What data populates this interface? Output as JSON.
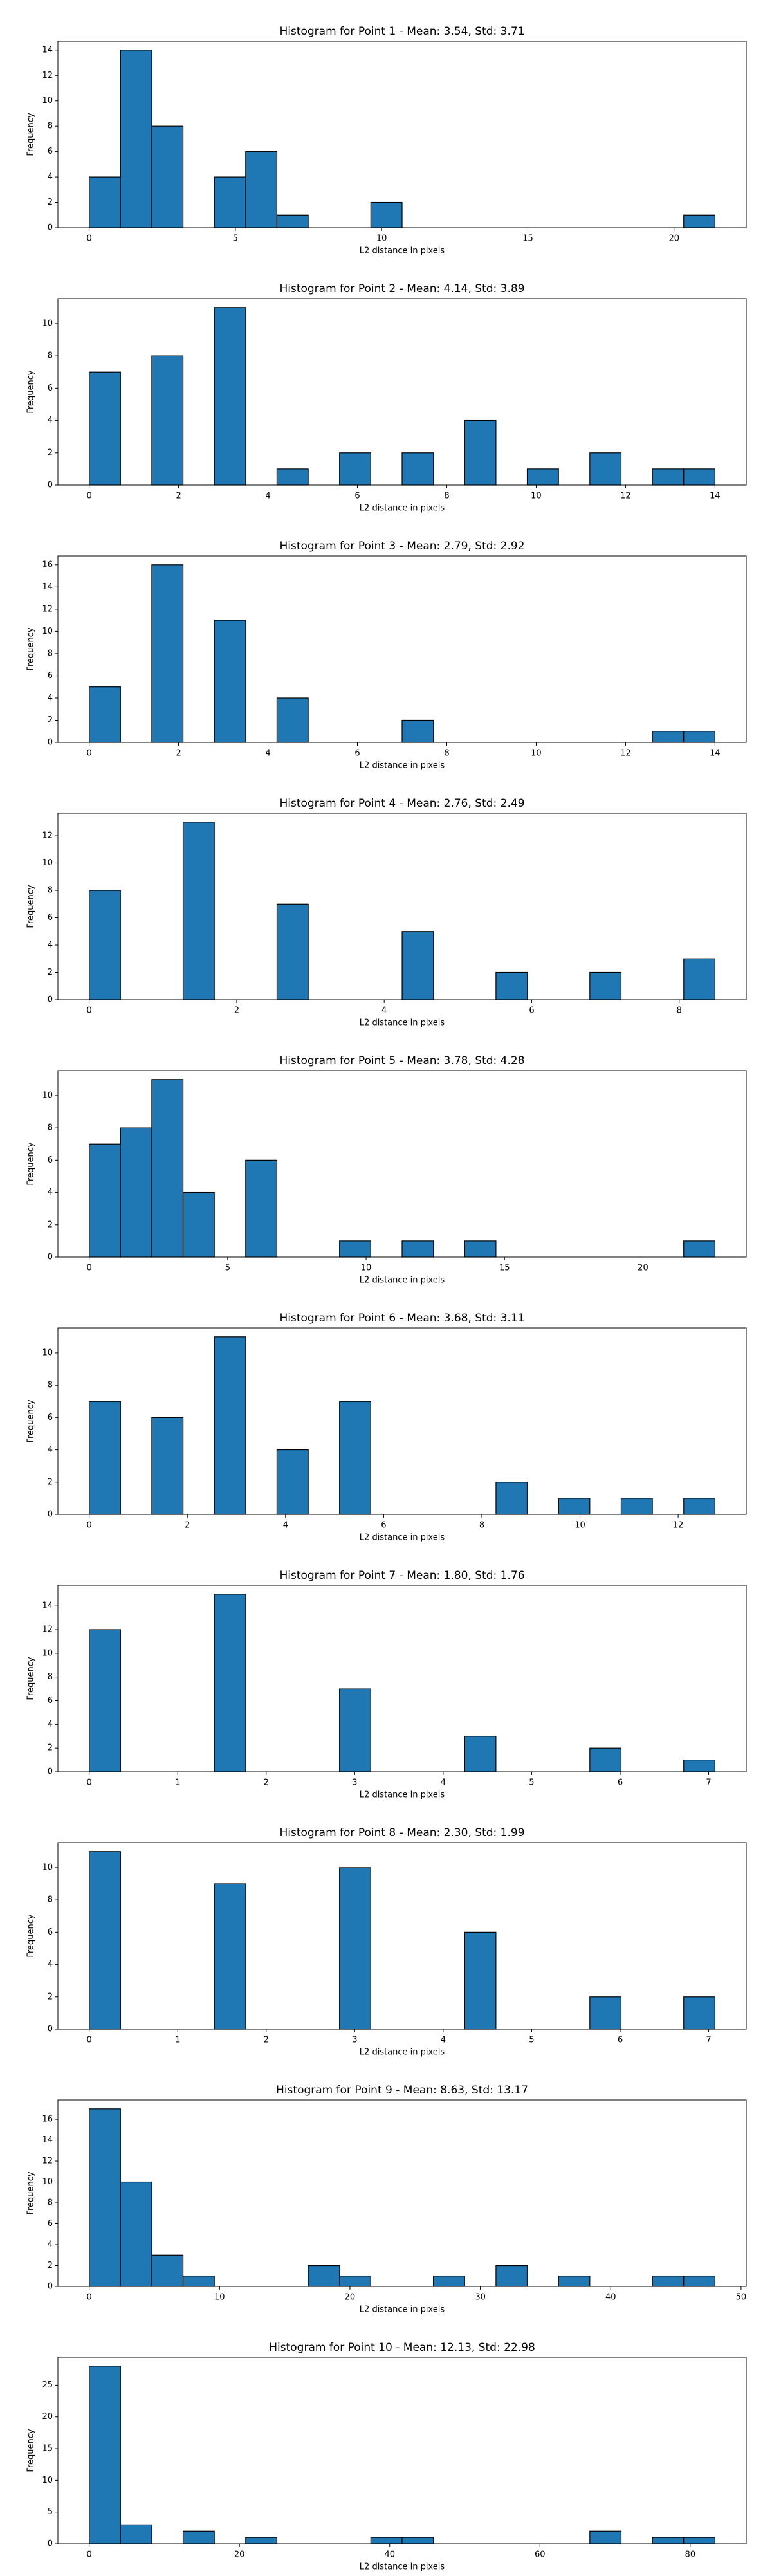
{
  "chart_data": [
    {
      "type": "histogram",
      "title": "Histogram for Point 1 - Mean: 3.54, Std: 3.71",
      "x_label": "L2 distance in pixels",
      "y_label": "Frequency",
      "color": "#1f77b4",
      "edge_color": "#000000",
      "bins": [
        0,
        1.07,
        2.14,
        3.21,
        4.28,
        5.35,
        6.42,
        7.49,
        8.56,
        9.63,
        10.7,
        11.77,
        12.84,
        13.91,
        14.98,
        16.05,
        17.12,
        18.19,
        19.26,
        20.33,
        21.4
      ],
      "values": [
        4,
        14,
        8,
        0,
        4,
        6,
        1,
        0,
        0,
        2,
        0,
        0,
        0,
        0,
        0,
        0,
        0,
        0,
        0,
        1
      ],
      "xlim": [
        -1.07,
        22.47
      ],
      "xticks": [
        0,
        5,
        10,
        15,
        20
      ],
      "ylim": [
        0,
        14.7
      ],
      "yticks": [
        0,
        2,
        4,
        6,
        8,
        10,
        12,
        14
      ]
    },
    {
      "type": "histogram",
      "title": "Histogram for Point 2 - Mean: 4.14, Std: 3.89",
      "x_label": "L2 distance in pixels",
      "y_label": "Frequency",
      "color": "#1f77b4",
      "edge_color": "#000000",
      "bins": [
        0,
        0.7,
        1.4,
        2.1,
        2.8,
        3.5,
        4.2,
        4.9,
        5.6,
        6.3,
        7,
        7.7,
        8.4,
        9.1,
        9.8,
        10.5,
        11.2,
        11.9,
        12.6,
        13.3,
        14
      ],
      "values": [
        7,
        0,
        8,
        0,
        11,
        0,
        1,
        0,
        2,
        0,
        2,
        0,
        4,
        0,
        1,
        0,
        2,
        0,
        1,
        1
      ],
      "xlim": [
        -0.7,
        14.7
      ],
      "xticks": [
        0,
        2,
        4,
        6,
        8,
        10,
        12,
        14
      ],
      "ylim": [
        0,
        11.55
      ],
      "yticks": [
        0,
        2,
        4,
        6,
        8,
        10
      ]
    },
    {
      "type": "histogram",
      "title": "Histogram for Point 3 - Mean: 2.79, Std: 2.92",
      "x_label": "L2 distance in pixels",
      "y_label": "Frequency",
      "color": "#1f77b4",
      "edge_color": "#000000",
      "bins": [
        0,
        0.7,
        1.4,
        2.1,
        2.8,
        3.5,
        4.2,
        4.9,
        5.6,
        6.3,
        7,
        7.7,
        8.4,
        9.1,
        9.8,
        10.5,
        11.2,
        11.9,
        12.6,
        13.3,
        14
      ],
      "values": [
        5,
        0,
        16,
        0,
        11,
        0,
        4,
        0,
        0,
        0,
        2,
        0,
        0,
        0,
        0,
        0,
        0,
        0,
        1,
        1
      ],
      "xlim": [
        -0.7,
        14.7
      ],
      "xticks": [
        0,
        2,
        4,
        6,
        8,
        10,
        12,
        14
      ],
      "ylim": [
        0,
        16.8
      ],
      "yticks": [
        0,
        2,
        4,
        6,
        8,
        10,
        12,
        14,
        16
      ]
    },
    {
      "type": "histogram",
      "title": "Histogram for Point 4 - Mean: 2.76, Std: 2.49",
      "x_label": "L2 distance in pixels",
      "y_label": "Frequency",
      "color": "#1f77b4",
      "edge_color": "#000000",
      "bins": [
        0,
        0.424,
        0.849,
        1.273,
        1.697,
        2.121,
        2.546,
        2.97,
        3.394,
        3.818,
        4.243,
        4.667,
        5.091,
        5.515,
        5.94,
        6.364,
        6.788,
        7.212,
        7.637,
        8.061,
        8.485
      ],
      "values": [
        8,
        0,
        0,
        13,
        0,
        0,
        7,
        0,
        0,
        0,
        5,
        0,
        0,
        2,
        0,
        0,
        2,
        0,
        0,
        3
      ],
      "xlim": [
        -0.424,
        8.909
      ],
      "xticks": [
        0,
        2,
        4,
        6,
        8
      ],
      "ylim": [
        0,
        13.65
      ],
      "yticks": [
        0,
        2,
        4,
        6,
        8,
        10,
        12
      ]
    },
    {
      "type": "histogram",
      "title": "Histogram for Point 5 - Mean: 3.78, Std: 4.28",
      "x_label": "L2 distance in pixels",
      "y_label": "Frequency",
      "color": "#1f77b4",
      "edge_color": "#000000",
      "bins": [
        0,
        1.13,
        2.26,
        3.39,
        4.52,
        5.65,
        6.78,
        7.91,
        9.04,
        10.17,
        11.3,
        12.43,
        13.56,
        14.69,
        15.82,
        16.95,
        18.08,
        19.21,
        20.34,
        21.47,
        22.6
      ],
      "values": [
        7,
        8,
        11,
        4,
        0,
        6,
        0,
        0,
        1,
        0,
        1,
        0,
        1,
        0,
        0,
        0,
        0,
        0,
        0,
        1
      ],
      "xlim": [
        -1.13,
        23.73
      ],
      "xticks": [
        0,
        5,
        10,
        15,
        20
      ],
      "ylim": [
        0,
        11.55
      ],
      "yticks": [
        0,
        2,
        4,
        6,
        8,
        10
      ]
    },
    {
      "type": "histogram",
      "title": "Histogram for Point 6 - Mean: 3.68, Std: 3.11",
      "x_label": "L2 distance in pixels",
      "y_label": "Frequency",
      "color": "#1f77b4",
      "edge_color": "#000000",
      "bins": [
        0,
        0.638,
        1.275,
        1.913,
        2.55,
        3.188,
        3.825,
        4.463,
        5.1,
        5.738,
        6.375,
        7.013,
        7.65,
        8.288,
        8.925,
        9.563,
        10.2,
        10.838,
        11.475,
        12.113,
        12.75
      ],
      "values": [
        7,
        0,
        6,
        0,
        11,
        0,
        4,
        0,
        7,
        0,
        0,
        0,
        0,
        2,
        0,
        1,
        0,
        1,
        0,
        1
      ],
      "xlim": [
        -0.6375,
        13.3875
      ],
      "xticks": [
        0,
        2,
        4,
        6,
        8,
        10,
        12
      ],
      "ylim": [
        0,
        11.55
      ],
      "yticks": [
        0,
        2,
        4,
        6,
        8,
        10
      ]
    },
    {
      "type": "histogram",
      "title": "Histogram for Point 7 - Mean: 1.80, Std: 1.76",
      "x_label": "L2 distance in pixels",
      "y_label": "Frequency",
      "color": "#1f77b4",
      "edge_color": "#000000",
      "bins": [
        0,
        0.354,
        0.707,
        1.061,
        1.414,
        1.768,
        2.121,
        2.475,
        2.828,
        3.182,
        3.536,
        3.889,
        4.243,
        4.596,
        4.95,
        5.303,
        5.657,
        6.01,
        6.364,
        6.718,
        7.071
      ],
      "values": [
        12,
        0,
        0,
        0,
        15,
        0,
        0,
        0,
        7,
        0,
        0,
        0,
        3,
        0,
        0,
        0,
        2,
        0,
        0,
        1
      ],
      "xlim": [
        -0.354,
        7.425
      ],
      "xticks": [
        0,
        1,
        2,
        3,
        4,
        5,
        6,
        7
      ],
      "ylim": [
        0,
        15.75
      ],
      "yticks": [
        0,
        2,
        4,
        6,
        8,
        10,
        12,
        14
      ]
    },
    {
      "type": "histogram",
      "title": "Histogram for Point 8 - Mean: 2.30, Std: 1.99",
      "x_label": "L2 distance in pixels",
      "y_label": "Frequency",
      "color": "#1f77b4",
      "edge_color": "#000000",
      "bins": [
        0,
        0.354,
        0.707,
        1.061,
        1.414,
        1.768,
        2.121,
        2.475,
        2.828,
        3.182,
        3.536,
        3.889,
        4.243,
        4.596,
        4.95,
        5.303,
        5.657,
        6.01,
        6.364,
        6.718,
        7.071
      ],
      "values": [
        11,
        0,
        0,
        0,
        9,
        0,
        0,
        0,
        10,
        0,
        0,
        0,
        6,
        0,
        0,
        0,
        2,
        0,
        0,
        2
      ],
      "xlim": [
        -0.354,
        7.425
      ],
      "xticks": [
        0,
        1,
        2,
        3,
        4,
        5,
        6,
        7
      ],
      "ylim": [
        0,
        11.55
      ],
      "yticks": [
        0,
        2,
        4,
        6,
        8,
        10
      ]
    },
    {
      "type": "histogram",
      "title": "Histogram for Point 9 - Mean: 8.63, Std: 13.17",
      "x_label": "L2 distance in pixels",
      "y_label": "Frequency",
      "color": "#1f77b4",
      "edge_color": "#000000",
      "bins": [
        0,
        2.4,
        4.8,
        7.2,
        9.6,
        12,
        14.4,
        16.8,
        19.2,
        21.6,
        24,
        26.4,
        28.8,
        31.2,
        33.6,
        36,
        38.4,
        40.8,
        43.2,
        45.6,
        48
      ],
      "values": [
        17,
        10,
        3,
        1,
        0,
        0,
        0,
        2,
        1,
        0,
        0,
        1,
        0,
        2,
        0,
        1,
        0,
        0,
        1,
        1
      ],
      "xlim": [
        -2.4,
        50.4
      ],
      "xticks": [
        0,
        10,
        20,
        30,
        40,
        50
      ],
      "ylim": [
        0,
        17.85
      ],
      "yticks": [
        0,
        2,
        4,
        6,
        8,
        10,
        12,
        14,
        16
      ]
    },
    {
      "type": "histogram",
      "title": "Histogram for Point 10 - Mean: 12.13, Std: 22.98",
      "x_label": "L2 distance in pixels",
      "y_label": "Frequency",
      "color": "#1f77b4",
      "edge_color": "#000000",
      "bins": [
        0,
        4.165,
        8.33,
        12.495,
        16.66,
        20.825,
        24.99,
        29.155,
        33.32,
        37.485,
        41.65,
        45.815,
        49.98,
        54.145,
        58.31,
        62.475,
        66.64,
        70.805,
        74.97,
        79.135,
        83.3
      ],
      "values": [
        28,
        3,
        0,
        2,
        0,
        1,
        0,
        0,
        0,
        1,
        1,
        0,
        0,
        0,
        0,
        0,
        2,
        0,
        1,
        1
      ],
      "xlim": [
        -4.165,
        87.465
      ],
      "xticks": [
        0,
        20,
        40,
        60,
        80
      ],
      "ylim": [
        0,
        29.4
      ],
      "yticks": [
        0,
        5,
        10,
        15,
        20,
        25
      ]
    }
  ]
}
